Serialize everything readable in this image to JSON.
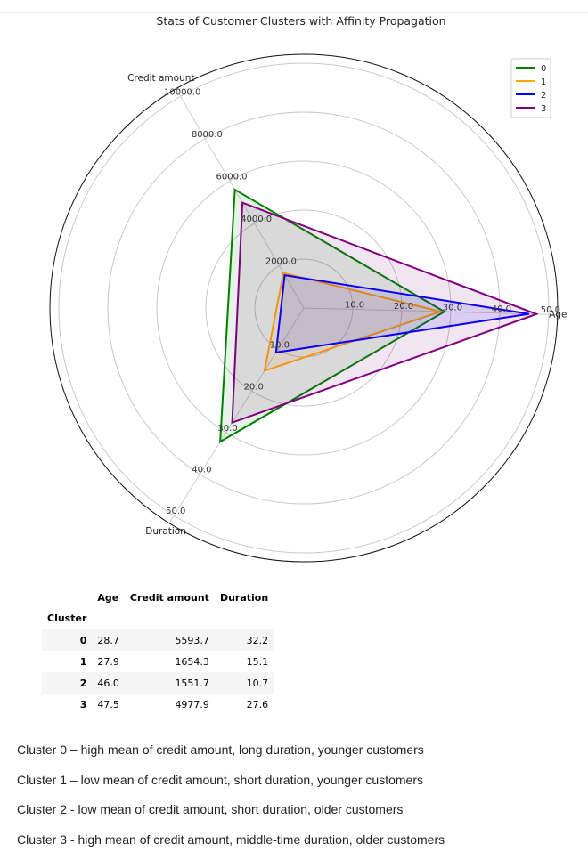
{
  "chart_data": {
    "type": "radar",
    "title": "Stats of Customer Clusters with Affinity Propagation",
    "axes": [
      "Age",
      "Credit amount",
      "Duration"
    ],
    "axis_ranges": {
      "Age": [
        0,
        50
      ],
      "Credit amount": [
        0,
        10000
      ],
      "Duration": [
        0,
        50
      ]
    },
    "tick_labels": {
      "Age": [
        "10.0",
        "20.0",
        "30.0",
        "40.0",
        "50.0"
      ],
      "Credit amount": [
        "2000.0",
        "4000.0",
        "6000.0",
        "8000.0",
        "10000.0"
      ],
      "Duration": [
        "10.0",
        "20.0",
        "30.0",
        "40.0",
        "50.0"
      ]
    },
    "series": [
      {
        "name": "0",
        "color": "#008000",
        "values": [
          28.7,
          5593.7,
          32.2
        ]
      },
      {
        "name": "1",
        "color": "#FFA500",
        "values": [
          27.9,
          1654.3,
          15.1
        ]
      },
      {
        "name": "2",
        "color": "#0000FF",
        "values": [
          46.0,
          1551.7,
          10.7
        ]
      },
      {
        "name": "3",
        "color": "#800080",
        "values": [
          47.5,
          4977.9,
          27.6
        ]
      }
    ],
    "grid": true,
    "legend_position": "top-right"
  },
  "table": {
    "columns": [
      "Age",
      "Credit amount",
      "Duration"
    ],
    "index_name": "Cluster",
    "rows": [
      {
        "cluster": "0",
        "age": "28.7",
        "credit": "5593.7",
        "duration": "32.2"
      },
      {
        "cluster": "1",
        "age": "27.9",
        "credit": "1654.3",
        "duration": "15.1"
      },
      {
        "cluster": "2",
        "age": "46.0",
        "credit": "1551.7",
        "duration": "10.7"
      },
      {
        "cluster": "3",
        "age": "47.5",
        "credit": "4977.9",
        "duration": "27.6"
      }
    ]
  },
  "notes": [
    "Cluster 0 – high mean of credit amount, long duration, younger customers",
    "Cluster 1 – low mean of credit amount, short duration, younger customers",
    "Cluster 2 - low mean of credit amount, short duration, older customers",
    "Cluster 3 - high mean of credit amount, middle-time duration, older customers"
  ]
}
